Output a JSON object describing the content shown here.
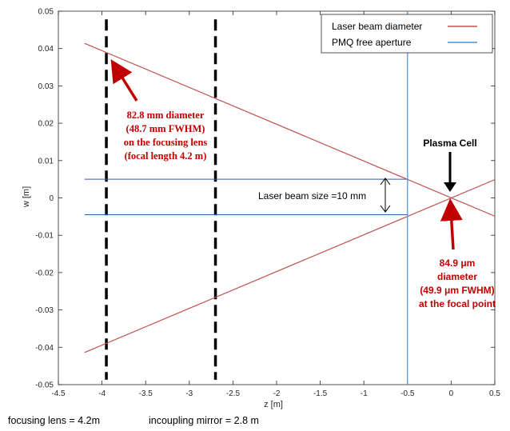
{
  "chart_data": {
    "type": "line",
    "xlabel": "z [m]",
    "ylabel": "w [m]",
    "xlim": [
      -4.5,
      0.5
    ],
    "ylim": [
      -0.05,
      0.05
    ],
    "x_ticks": [
      "-4.5",
      "-4",
      "-3.5",
      "-3",
      "-2.5",
      "-2",
      "-1.5",
      "-1",
      "-0.5",
      "0",
      "0.5"
    ],
    "y_ticks": [
      "-0.05",
      "-0.04",
      "-0.03",
      "-0.02",
      "-0.01",
      "0",
      "0.01",
      "0.02",
      "0.03",
      "0.04",
      "0.05"
    ],
    "grid": false,
    "legend": {
      "placement": "top-right",
      "entries": [
        {
          "label": "Laser beam diameter",
          "color": "#c0504d"
        },
        {
          "label": "PMQ free aperture",
          "color": "#4a90d9"
        }
      ]
    },
    "series": [
      {
        "name": "Laser beam diameter",
        "color": "#c0504d",
        "x": [
          -4.2,
          0.5
        ],
        "y": [
          0.0414,
          -0.0049
        ]
      },
      {
        "name": "Laser beam diameter",
        "color": "#c0504d",
        "x": [
          -4.2,
          0.5
        ],
        "y": [
          -0.0414,
          0.0049
        ]
      },
      {
        "name": "PMQ free aperture",
        "color": "#4a90d9",
        "x": [
          -0.5,
          -0.5
        ],
        "y": [
          -0.05,
          0.05
        ]
      }
    ],
    "beam_size_lines": {
      "color": "#2e5fa3",
      "x": [
        -4.2,
        -0.5
      ],
      "y_upper": 0.005,
      "y_lower": -0.0045
    },
    "dashed_markers": {
      "color": "#000000",
      "x": [
        -3.95,
        -2.7
      ],
      "y_range": [
        -0.0487,
        0.0478
      ]
    },
    "annotations": {
      "lens_text": [
        "82.8 mm diameter",
        "(48.7 mm FWHM)",
        "on the focusing lens",
        "(focal length 4.2 m)"
      ],
      "focal_text": [
        "84.9 μm",
        "diameter",
        "(49.9 μm FWHM)",
        "at the focal point"
      ],
      "plasma_cell": "Plasma Cell",
      "beam_size": "Laser beam size =10 mm"
    }
  },
  "captions": {
    "focusing_lens": "focusing lens = 4.2m",
    "incoupling_mirror": "incoupling mirror = 2.8 m"
  }
}
